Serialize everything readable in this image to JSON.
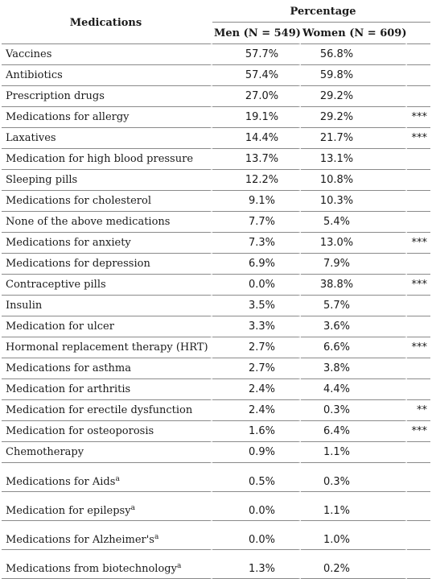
{
  "header": {
    "medications": "Medications",
    "percentage": "Percentage",
    "men": "Men (N = 549)",
    "women": "Women (N = 609)"
  },
  "rows": [
    {
      "name": "Vaccines",
      "sup": "",
      "men": "57.7%",
      "women": "56.8%",
      "sig": ""
    },
    {
      "name": "Antibiotics",
      "sup": "",
      "men": "57.4%",
      "women": "59.8%",
      "sig": ""
    },
    {
      "name": "Prescription drugs",
      "sup": "",
      "men": "27.0%",
      "women": "29.2%",
      "sig": ""
    },
    {
      "name": "Medications for allergy",
      "sup": "",
      "men": "19.1%",
      "women": "29.2%",
      "sig": "***"
    },
    {
      "name": "Laxatives",
      "sup": "",
      "men": "14.4%",
      "women": "21.7%",
      "sig": "***"
    },
    {
      "name": "Medication for high blood pressure",
      "sup": "",
      "men": "13.7%",
      "women": "13.1%",
      "sig": ""
    },
    {
      "name": "Sleeping pills",
      "sup": "",
      "men": "12.2%",
      "women": "10.8%",
      "sig": ""
    },
    {
      "name": "Medications for cholesterol",
      "sup": "",
      "men": "9.1%",
      "women": "10.3%",
      "sig": ""
    },
    {
      "name": "None of the above medications",
      "sup": "",
      "men": "7.7%",
      "women": "5.4%",
      "sig": ""
    },
    {
      "name": "Medications for anxiety",
      "sup": "",
      "men": "7.3%",
      "women": "13.0%",
      "sig": "***"
    },
    {
      "name": "Medications for depression",
      "sup": "",
      "men": "6.9%",
      "women": "7.9%",
      "sig": ""
    },
    {
      "name": "Contraceptive pills",
      "sup": "",
      "men": "0.0%",
      "women": "38.8%",
      "sig": "***"
    },
    {
      "name": "Insulin",
      "sup": "",
      "men": "3.5%",
      "women": "5.7%",
      "sig": ""
    },
    {
      "name": "Medication for ulcer",
      "sup": "",
      "men": "3.3%",
      "women": "3.6%",
      "sig": ""
    },
    {
      "name": "Hormonal replacement therapy (HRT)",
      "sup": "",
      "men": "2.7%",
      "women": "6.6%",
      "sig": "***"
    },
    {
      "name": "Medications for asthma",
      "sup": "",
      "men": "2.7%",
      "women": "3.8%",
      "sig": ""
    },
    {
      "name": "Medication for arthritis",
      "sup": "",
      "men": "2.4%",
      "women": "4.4%",
      "sig": ""
    },
    {
      "name": "Medication for erectile dysfunction",
      "sup": "",
      "men": "2.4%",
      "women": "0.3%",
      "sig": "**"
    },
    {
      "name": "Medication for osteoporosis",
      "sup": "",
      "men": "1.6%",
      "women": "6.4%",
      "sig": "***"
    },
    {
      "name": "Chemotherapy",
      "sup": "",
      "men": "0.9%",
      "women": "1.1%",
      "sig": ""
    },
    {
      "name": "Medications for Aids",
      "sup": "a",
      "men": "0.5%",
      "women": "0.3%",
      "sig": ""
    },
    {
      "name": "Medication for epilepsy",
      "sup": "a",
      "men": "0.0%",
      "women": "1.1%",
      "sig": ""
    },
    {
      "name": "Medications for Alzheimer's",
      "sup": "a",
      "men": "0.0%",
      "women": "1.0%",
      "sig": ""
    },
    {
      "name": "Medications from biotechnology",
      "sup": "a",
      "men": "1.3%",
      "women": "0.2%",
      "sig": ""
    }
  ]
}
